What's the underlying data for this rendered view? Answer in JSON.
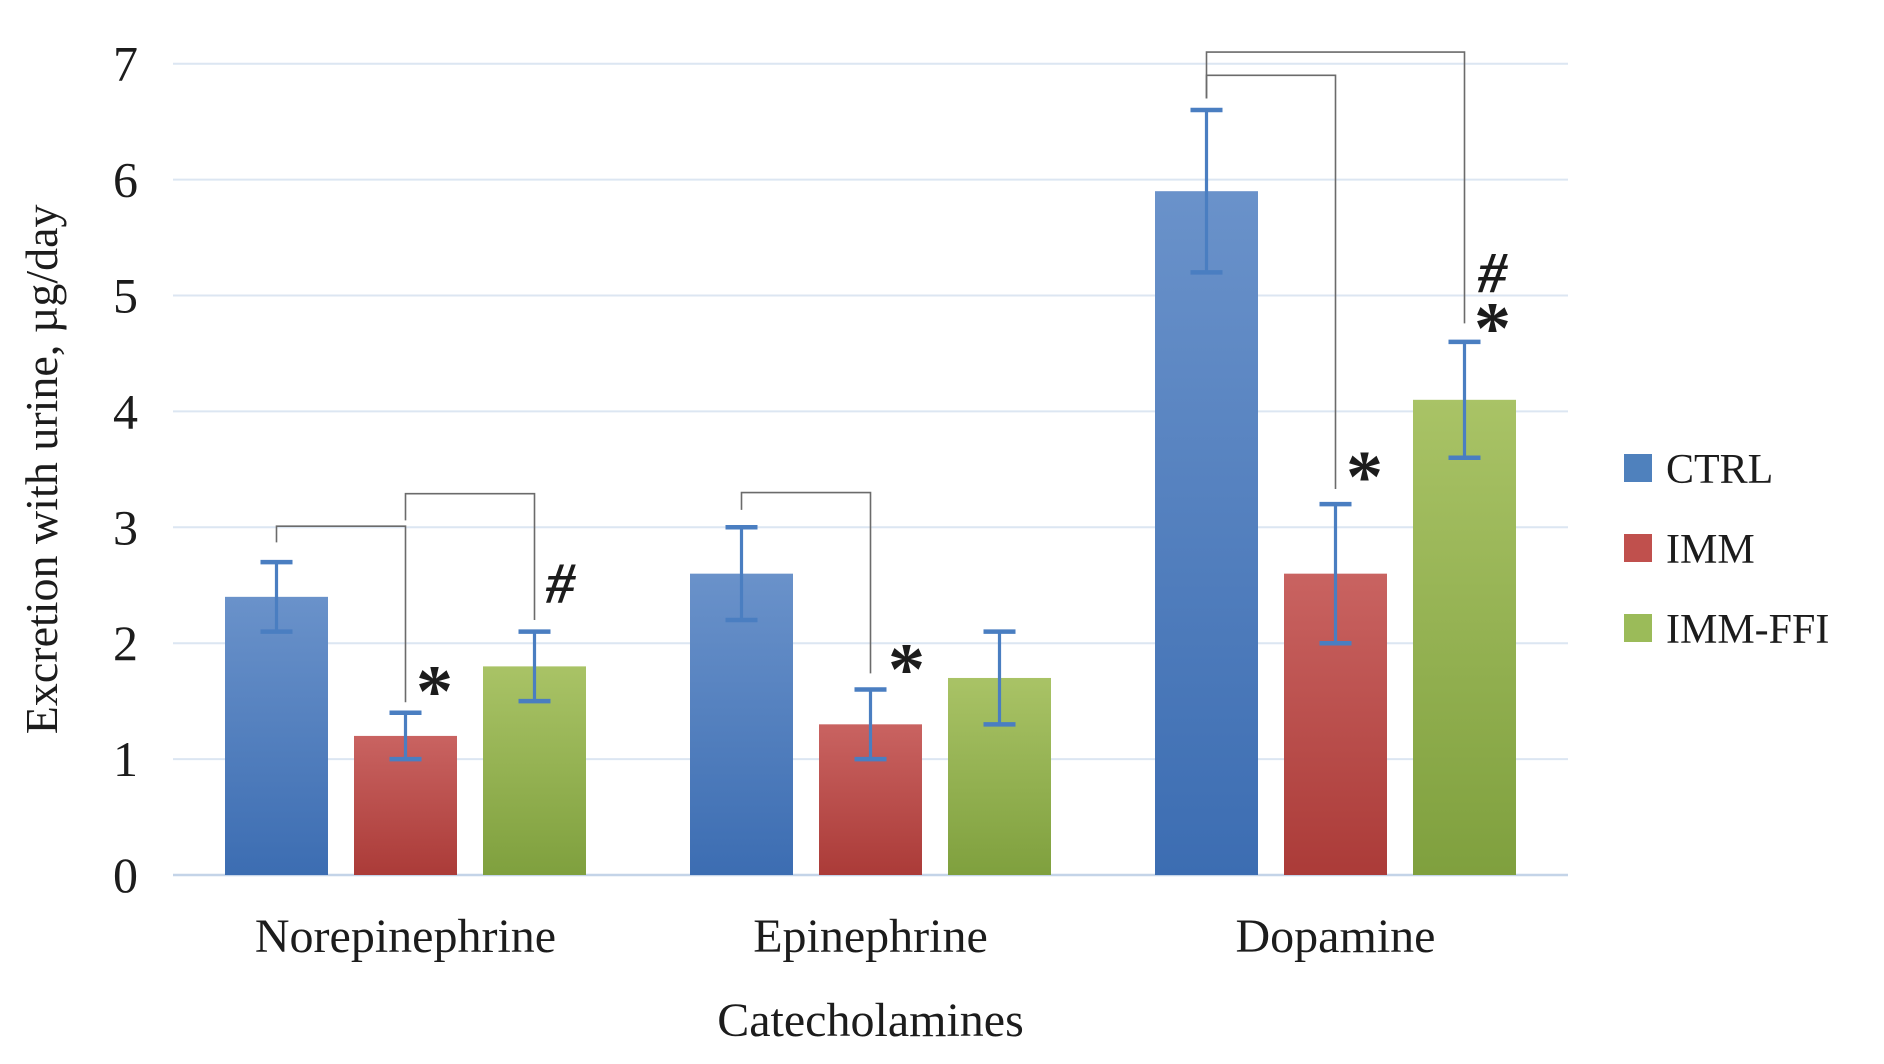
{
  "chart_data": {
    "type": "bar",
    "title": "",
    "xlabel": "Catecholamines",
    "ylabel": "Excretion with urine, µg/day",
    "categories": [
      "Norepinephrine",
      "Epinephrine",
      "Dopamine"
    ],
    "series": [
      {
        "name": "CTRL",
        "legend_color": "#4f81bd",
        "gradient_top": "#6a92ca",
        "gradient_bottom": "#3c6db2",
        "values": [
          2.4,
          2.6,
          5.9
        ],
        "errors": [
          0.3,
          0.4,
          0.7
        ]
      },
      {
        "name": "IMM",
        "legend_color": "#c0504d",
        "gradient_top": "#c96361",
        "gradient_bottom": "#ab3b38",
        "values": [
          1.2,
          1.3,
          2.6
        ],
        "errors": [
          0.2,
          0.3,
          0.6
        ]
      },
      {
        "name": "IMM-FFI",
        "legend_color": "#9bbb59",
        "gradient_top": "#a9c366",
        "gradient_bottom": "#7fa03e",
        "values": [
          1.8,
          1.7,
          4.1
        ],
        "errors": [
          0.3,
          0.4,
          0.5
        ]
      }
    ],
    "ylim": [
      0,
      7
    ],
    "yticks": [
      0,
      1,
      2,
      3,
      4,
      5,
      6,
      7
    ],
    "grid": true,
    "legend_position": "right",
    "gridline_color": "#dce6f2",
    "baseline_color": "#c4d4e8",
    "error_bar_color": "#4a7ec1",
    "bracket_color": "#6b6b6b",
    "significance_brackets": [
      {
        "category": 0,
        "from": 0,
        "to": 1,
        "level": 3.01,
        "from_drop": 2.87,
        "to_drop": 1.49
      },
      {
        "category": 0,
        "from": 1,
        "to": 2,
        "level": 3.29,
        "from_drop": 3.06,
        "to_drop": 2.2
      },
      {
        "category": 1,
        "from": 0,
        "to": 1,
        "level": 3.3,
        "from_drop": 3.15,
        "to_drop": 1.74
      },
      {
        "category": 2,
        "from": 0,
        "to": 1,
        "level": 6.9,
        "from_drop": 6.7,
        "to_drop": 3.33
      },
      {
        "category": 2,
        "from": 0,
        "to": 2,
        "level": 7.1,
        "from_drop": 6.7,
        "to_drop": 4.76
      }
    ],
    "markers": [
      {
        "symbol": "*",
        "category": 0,
        "series": 1,
        "dx": 29,
        "value": 1.68
      },
      {
        "symbol": "#",
        "category": 0,
        "series": 2,
        "dx": 26,
        "value": 2.51
      },
      {
        "symbol": "*",
        "category": 1,
        "series": 1,
        "dx": 36,
        "value": 1.87
      },
      {
        "symbol": "*",
        "category": 2,
        "series": 1,
        "dx": 29,
        "value": 3.53
      },
      {
        "symbol": "#",
        "category": 2,
        "series": 2,
        "dx": 28,
        "value": 5.19
      },
      {
        "symbol": "*",
        "category": 2,
        "series": 2,
        "dx": 28,
        "value": 4.81
      }
    ]
  }
}
